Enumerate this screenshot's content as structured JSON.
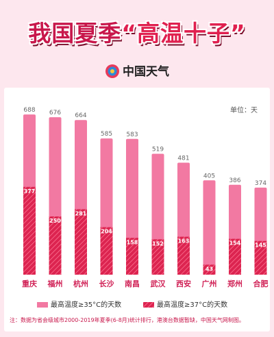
{
  "header": {
    "title_pre": "我国夏季",
    "title_hl": "“高温十子”",
    "brand": "中国天气"
  },
  "unit_label": "单位：天",
  "note": "注：数据为省会级城市2000-2019年夏季(6-8月)统计排行，港澳台数据暂缺，中国天气网制图。",
  "colors": {
    "light": "#f279a2",
    "dark": "#dc2450",
    "label": "#d02055",
    "background": "#fde7ee"
  },
  "chart_data": {
    "type": "bar",
    "categories": [
      "重庆",
      "福州",
      "杭州",
      "长沙",
      "南昌",
      "武汉",
      "西安",
      "广州",
      "郑州",
      "合肥"
    ],
    "series": [
      {
        "name": "最高温度≥35°C的天数",
        "values": [
          688,
          676,
          664,
          585,
          583,
          519,
          481,
          405,
          386,
          374
        ]
      },
      {
        "name": "最高温度≥37°C的天数",
        "values": [
          377,
          250,
          281,
          204,
          158,
          152,
          163,
          43,
          154,
          145
        ]
      }
    ],
    "ylim": [
      0,
      700
    ],
    "grid": false,
    "legend": "bottom"
  }
}
